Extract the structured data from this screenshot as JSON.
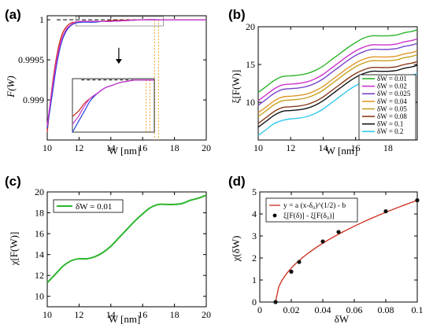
{
  "panels": {
    "a": {
      "label": "(a)",
      "ylabel": "F(W)",
      "xlabel": "W [nm]"
    },
    "b": {
      "label": "(b)",
      "ylabel": "ξ[F(W)]",
      "xlabel": "W [nm]"
    },
    "c": {
      "label": "(c)",
      "ylabel": "χ[F(W)]",
      "xlabel": "W [nm]"
    },
    "d": {
      "label": "(d)",
      "ylabel": "χ(δW)",
      "xlabel": "δW"
    }
  },
  "colors": {
    "green": "#2db52d",
    "magenta": "#cc33cc",
    "purple": "#7744cc",
    "orange": "#e0982a",
    "gold": "#c8a020",
    "brown": "#8b3a1a",
    "black": "#111111",
    "navy": "#2233aa",
    "cyan": "#33c8ee",
    "red": "#cc2a1a",
    "blue": "#2244dd",
    "inset_orange_line": "#f0a020",
    "dashed": "#000000"
  },
  "chart_data": [
    {
      "panel": "a",
      "type": "line",
      "xlabel": "W [nm]",
      "ylabel": "F(W)",
      "xlim": [
        10,
        20
      ],
      "ylim": [
        0.9985,
        1.00005
      ],
      "x_ticks": [
        "10",
        "12",
        "14",
        "16",
        "18",
        "20"
      ],
      "y_ticks": [
        "0.999",
        "0.9995",
        "1"
      ],
      "y_tick_values": [
        0.999,
        0.9995,
        1.0
      ],
      "grid": false,
      "series": [
        {
          "color": "red",
          "x": [
            10.0,
            10.3,
            10.6,
            10.9,
            11.2,
            11.5,
            11.8,
            12.2,
            12.6,
            13.0,
            13.5,
            14.0,
            15.0,
            16.0,
            17.0,
            18.0,
            19.0,
            20.0
          ],
          "values": [
            0.9986,
            0.99915,
            0.99955,
            0.9998,
            0.99991,
            0.99996,
            0.99997,
            0.99998,
            0.99998,
            0.99998,
            0.99998,
            0.99999,
            0.999995,
            1.0,
            1.0,
            1.0,
            1.0,
            1.0
          ]
        },
        {
          "color": "blue",
          "x": [
            10.0,
            10.3,
            10.6,
            10.9,
            11.2,
            11.5,
            11.8,
            12.2,
            12.6,
            13.0,
            13.5,
            14.0,
            15.0,
            16.0,
            17.0,
            18.0,
            19.0,
            20.0
          ],
          "values": [
            0.99865,
            0.99905,
            0.99945,
            0.99972,
            0.99986,
            0.99993,
            0.99996,
            0.99997,
            0.99997,
            0.99997,
            0.99998,
            0.99998,
            0.99999,
            1.0,
            1.0,
            1.0,
            1.0,
            1.0
          ]
        },
        {
          "color": "magenta",
          "x": [
            10.0,
            10.3,
            10.6,
            10.9,
            11.2,
            11.5,
            11.8,
            12.2,
            12.6,
            13.0,
            13.5,
            14.0,
            15.0,
            16.0,
            17.0,
            18.0,
            19.0,
            20.0
          ],
          "values": [
            0.99868,
            0.99912,
            0.9995,
            0.99975,
            0.99988,
            0.99994,
            0.99997,
            0.99998,
            0.99998,
            0.99998,
            0.99998,
            0.99998,
            0.99999,
            1.0,
            1.0,
            1.0,
            1.0,
            1.0
          ]
        }
      ],
      "reference_line": {
        "style": "dashed",
        "value": 1.0
      },
      "vertical_markers": [
        16.75,
        17.0
      ],
      "arrow": {
        "from": [
          14.5,
          0.99965
        ],
        "to": [
          14.5,
          0.99945
        ]
      }
    },
    {
      "panel": "b",
      "type": "line",
      "xlabel": "W [nm]",
      "ylabel": "ξ[F(W)]",
      "xlim": [
        10,
        19.8
      ],
      "ylim": [
        5,
        20
      ],
      "x_ticks": [
        "10",
        "12",
        "14",
        "16",
        "18"
      ],
      "y_ticks": [
        "10",
        "15",
        "20"
      ],
      "legend_placement": "bottom-right",
      "x": [
        10,
        10.5,
        11,
        11.5,
        12,
        12.5,
        13,
        13.5,
        14,
        14.5,
        15,
        15.5,
        16,
        16.5,
        17,
        17.5,
        18,
        18.5,
        19,
        19.5,
        19.8
      ],
      "series": [
        {
          "name": "δW = 0.01",
          "color": "green",
          "values": [
            11.3,
            12.1,
            12.9,
            13.4,
            13.5,
            13.6,
            13.8,
            14.2,
            14.8,
            15.6,
            16.4,
            17.2,
            17.9,
            18.5,
            18.8,
            18.8,
            18.8,
            18.9,
            19.2,
            19.4,
            19.6
          ]
        },
        {
          "name": "δW = 0.02",
          "color": "magenta",
          "values": [
            10.2,
            11.0,
            11.8,
            12.3,
            12.4,
            12.5,
            12.7,
            13.1,
            13.7,
            14.5,
            15.3,
            16.1,
            16.8,
            17.3,
            17.6,
            17.6,
            17.6,
            17.7,
            18.0,
            18.2,
            18.4
          ]
        },
        {
          "name": "δW = 0.025",
          "color": "purple",
          "values": [
            9.6,
            10.4,
            11.2,
            11.7,
            11.8,
            11.9,
            12.1,
            12.5,
            13.1,
            13.9,
            14.7,
            15.5,
            16.2,
            16.7,
            17.0,
            17.0,
            17.0,
            17.1,
            17.4,
            17.6,
            17.8
          ]
        },
        {
          "name": "δW = 0.04",
          "color": "orange",
          "values": [
            8.6,
            9.4,
            10.2,
            10.7,
            10.8,
            10.9,
            11.1,
            11.5,
            12.1,
            12.9,
            13.7,
            14.5,
            15.2,
            15.7,
            16.0,
            16.0,
            16.0,
            16.1,
            16.4,
            16.6,
            16.8
          ]
        },
        {
          "name": "δW = 0.05",
          "color": "gold",
          "values": [
            8.1,
            8.9,
            9.7,
            10.2,
            10.3,
            10.4,
            10.6,
            11.0,
            11.6,
            12.4,
            13.2,
            14.0,
            14.7,
            15.2,
            15.5,
            15.5,
            15.5,
            15.6,
            15.9,
            16.1,
            16.3
          ]
        },
        {
          "name": "δW = 0.08",
          "color": "brown",
          "values": [
            7.2,
            8.0,
            8.8,
            9.3,
            9.4,
            9.5,
            9.7,
            10.1,
            10.7,
            11.5,
            12.3,
            13.1,
            13.8,
            14.3,
            14.6,
            14.6,
            14.6,
            14.7,
            15.0,
            15.2,
            15.4
          ]
        },
        {
          "name": "δW = 0.1",
          "color": "black",
          "values": [
            6.7,
            7.5,
            8.3,
            8.8,
            8.9,
            9.0,
            9.2,
            9.6,
            10.2,
            11.0,
            11.8,
            12.6,
            13.3,
            13.8,
            14.1,
            14.1,
            14.1,
            14.2,
            14.5,
            14.7,
            14.9
          ]
        },
        {
          "name": "δW = 0.2",
          "color": "cyan",
          "values": [
            5.6,
            6.4,
            7.2,
            7.6,
            7.8,
            7.9,
            8.1,
            8.5,
            9.1,
            9.9,
            10.7,
            11.5,
            12.2,
            12.7,
            13.0,
            13.0,
            13.0,
            13.1,
            13.4,
            13.6,
            13.8
          ]
        }
      ]
    },
    {
      "panel": "c",
      "type": "line",
      "xlabel": "W [nm]",
      "ylabel": "χ[F(W)]",
      "xlim": [
        10,
        20
      ],
      "ylim": [
        9,
        20
      ],
      "x_ticks": [
        "10",
        "12",
        "14",
        "16",
        "18",
        "20"
      ],
      "y_ticks": [
        "10",
        "12",
        "14",
        "16",
        "18",
        "20"
      ],
      "legend_placement": "top-left",
      "x": [
        10,
        10.5,
        11,
        11.5,
        12,
        12.5,
        13,
        13.5,
        14,
        14.5,
        15,
        15.5,
        16,
        16.5,
        17,
        17.5,
        18,
        18.5,
        19,
        19.5,
        20
      ],
      "series": [
        {
          "name": "δW = 0.01",
          "color": "green",
          "values": [
            11.3,
            12.1,
            12.9,
            13.4,
            13.6,
            13.6,
            13.8,
            14.2,
            14.8,
            15.6,
            16.4,
            17.2,
            17.9,
            18.5,
            18.8,
            18.8,
            18.8,
            18.9,
            19.2,
            19.4,
            19.7
          ]
        }
      ]
    },
    {
      "panel": "d",
      "type": "scatter",
      "xlabel": "δW",
      "ylabel": "χ(δW)",
      "xlim": [
        0,
        0.1
      ],
      "ylim": [
        0,
        5
      ],
      "x_ticks": [
        "0",
        "0.02",
        "0.04",
        "0.06",
        "0.08",
        "0.1"
      ],
      "y_ticks": [
        "0",
        "1",
        "2",
        "3",
        "4",
        "5"
      ],
      "legend_placement": "top-left",
      "series": [
        {
          "name": "y = a (x-δ₀)^(1/2) - b",
          "kind": "line",
          "color": "red",
          "x": [
            0.01,
            0.02,
            0.025,
            0.04,
            0.05,
            0.08,
            0.1
          ],
          "values": [
            0.0,
            1.38,
            1.82,
            2.75,
            3.18,
            4.12,
            4.62
          ]
        },
        {
          "name": "ξ[F(δ)] - ξ[F(δ₀)]",
          "kind": "points",
          "color": "black",
          "x": [
            0.01,
            0.02,
            0.025,
            0.04,
            0.05,
            0.08,
            0.1
          ],
          "values": [
            0.0,
            1.38,
            1.82,
            2.75,
            3.18,
            4.12,
            4.62
          ]
        }
      ]
    }
  ]
}
